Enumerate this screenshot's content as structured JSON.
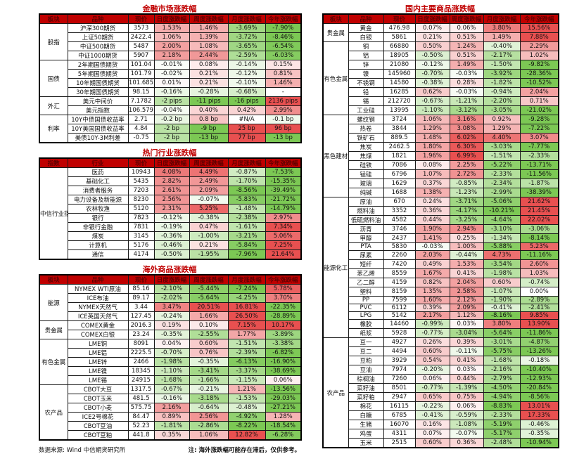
{
  "accent": {
    "title_color": "#c00000",
    "header_bg": "#c00000",
    "header_text": "#5f0000",
    "positive_base": "#e85050",
    "negative_base": "#7cc854"
  },
  "tables": [
    {
      "id": "financial",
      "title": "金融市场涨跌幅",
      "headers": [
        "板块",
        "品种",
        "现价",
        "日度涨跌幅",
        "周度涨跌幅",
        "月度涨跌幅",
        "今年涨跌幅"
      ],
      "groups": [
        {
          "sector": "股指",
          "rows": [
            [
              "沪深300期货",
              "3573",
              "1.53%",
              "1.46%",
              "-3.69%",
              "-7.90%"
            ],
            [
              "上证50期货",
              "2422.4",
              "1.06%",
              "1.39%",
              "-3.72%",
              "-8.46%"
            ],
            [
              "中证500期货",
              "5487",
              "2.00%",
              "1.08%",
              "-3.65%",
              "-6.54%"
            ],
            [
              "中证1000期货",
              "5907",
              "2.18%",
              "2.44%",
              "-2.59%",
              "-6.03%"
            ]
          ]
        },
        {
          "sector": "国债",
          "rows": [
            [
              "2年期国债期货",
              "101.04",
              "-0.01%",
              "0.08%",
              "-0.14%",
              "0.15%"
            ],
            [
              "5年期国债期货",
              "101.79",
              "-0.02%",
              "0.21%",
              "-0.12%",
              "0.81%"
            ],
            [
              "10年期国债期货",
              "101.685",
              "0.01%",
              "0.21%",
              "-0.10%",
              "1.46%"
            ],
            [
              "30年期国债期货",
              "98.15",
              "-0.16%",
              "-0.28%",
              "-0.68%",
              "-"
            ]
          ]
        },
        {
          "sector": "外汇",
          "rows": [
            [
              "美元中间价",
              "7.1782",
              "-2 pips",
              "-11 pips",
              "-16 pips",
              "2136 pips"
            ],
            [
              "美元指数",
              "106.579",
              "-0.04%",
              "0.40%",
              "0.42%",
              "2.99%"
            ]
          ]
        },
        {
          "sector": "利率",
          "rows": [
            [
              "10Y中债国债收益率",
              "2.71",
              "-0.2 bp",
              "0.8 bp",
              "#N/A",
              "-0.1 bp"
            ],
            [
              "10Y美国国债收益率",
              "4.84",
              "-2 bp",
              "-9 bp",
              "25 bp",
              "96 bp"
            ],
            [
              "美债10Y-3M利差",
              "-0.75",
              "-2 bp",
              "-13 bp",
              "77 bp",
              "-13 bp"
            ]
          ]
        }
      ]
    },
    {
      "id": "industry",
      "title": "热门行业涨跌幅",
      "headers": [
        "指数",
        "行业",
        "现价",
        "日度涨跌幅",
        "周度涨跌幅",
        "月度涨跌幅",
        "今年涨跌幅"
      ],
      "groups": [
        {
          "sector": "中信行业指数",
          "rows": [
            [
              "医药",
              "10943",
              "4.08%",
              "4.49%",
              "-0.87%",
              "-7.53%"
            ],
            [
              "基础化工",
              "5435",
              "2.82%",
              "2.49%",
              "-1.70%",
              "-15.35%"
            ],
            [
              "消费者服务",
              "7203",
              "2.61%",
              "2.09%",
              "-8.56%",
              "-39.49%"
            ],
            [
              "电力设备及新能源",
              "8230",
              "2.56%",
              "-0.07%",
              "-5.83%",
              "-21.72%"
            ],
            [
              "农林牧渔",
              "5120",
              "2.31%",
              "5.25%",
              "-1.48%",
              "-14.79%"
            ],
            [
              "银行",
              "7823",
              "-0.12%",
              "-0.38%",
              "-2.38%",
              "2.97%"
            ],
            [
              "非银行金融",
              "7831",
              "-0.19%",
              "0.47%",
              "-1.61%",
              "7.34%"
            ],
            [
              "煤炭",
              "3145",
              "-0.36%",
              "-1.00%",
              "-3.21%",
              "5.06%"
            ],
            [
              "计算机",
              "5176",
              "-0.46%",
              "0.21%",
              "-5.84%",
              "7.25%"
            ],
            [
              "通信",
              "4174",
              "-0.50%",
              "-1.95%",
              "-7.96%",
              "21.64%"
            ]
          ]
        }
      ]
    },
    {
      "id": "overseas",
      "title": "海外商品涨跌幅",
      "headers": [
        "板块",
        "品种",
        "现价",
        "日度涨跌幅",
        "周度涨跌幅",
        "月度涨跌幅",
        "今年涨跌幅"
      ],
      "groups": [
        {
          "sector": "能源",
          "rows": [
            [
              "NYMEX WTI原油",
              "85.16",
              "-2.10%",
              "-5.44%",
              "-7.24%",
              "5.78%"
            ],
            [
              "ICE布油",
              "89.17",
              "-2.02%",
              "-5.64%",
              "-4.25%",
              "3.70%"
            ],
            [
              "NYMEX天然气",
              "3.44",
              "3.47%",
              "20.51%",
              "16.81%",
              "-22.35%"
            ],
            [
              "ICE英国天然气",
              "127.45",
              "-0.24%",
              "1.66%",
              "26.50%",
              "-28.89%"
            ]
          ]
        },
        {
          "sector": "贵金属",
          "rows": [
            [
              "COMEX黄金",
              "2016.3",
              "0.19%",
              "0.10%",
              "7.15%",
              "10.17%"
            ],
            [
              "COMEX白银",
              "23.24",
              "-0.35%",
              "-2.55%",
              "1.77%",
              "-3.89%"
            ]
          ]
        },
        {
          "sector": "有色金属",
          "rows": [
            [
              "LME铜",
              "8091",
              "0.04%",
              "0.60%",
              "-1.51%",
              "-3.38%"
            ],
            [
              "LME铝",
              "2225.5",
              "-0.70%",
              "0.76%",
              "-2.39%",
              "-6.82%"
            ],
            [
              "LME锌",
              "2466",
              "-1.98%",
              "-0.35%",
              "-6.13%",
              "-16.90%"
            ],
            [
              "LME镍",
              "18345",
              "-1.10%",
              "-3.41%",
              "-3.37%",
              "-38.69%"
            ],
            [
              "LME锡",
              "24915",
              "-1.68%",
              "-1.66%",
              "-1.15%",
              "0.06%"
            ]
          ]
        },
        {
          "sector": "农产品",
          "rows": [
            [
              "CBOT大豆",
              "1317.5",
              "-0.67%",
              "-0.21%",
              "1.21%",
              "-13.56%"
            ],
            [
              "CBOT玉米",
              "481.5",
              "-0.16%",
              "-3.18%",
              "-1.53%",
              "-29.03%"
            ],
            [
              "CBOT小麦",
              "575.75",
              "2.16%",
              "-0.64%",
              "-0.48%",
              "-27.21%"
            ],
            [
              "ICE2号棉花",
              "84.47",
              "0.89%",
              "2.56%",
              "-4.92%",
              "1.28%"
            ],
            [
              "CBOT豆油",
              "52.23",
              "-1.81%",
              "-2.86%",
              "-8.22%",
              "-18.54%"
            ],
            [
              "CBOT豆粕",
              "441.8",
              "0.35%",
              "1.06%",
              "12.82%",
              "-6.28%"
            ]
          ]
        }
      ]
    },
    {
      "id": "domestic",
      "title": "国内主要商品涨跌幅",
      "headers": [
        "板块",
        "品种",
        "现价",
        "日度涨跌幅",
        "周度涨跌幅",
        "月度涨跌幅",
        "今年涨跌幅"
      ],
      "groups": [
        {
          "sector": "贵金属",
          "rows": [
            [
              "黄金",
              "476.98",
              "0.07%",
              "0.06%",
              "3.80%",
              "15.56%"
            ],
            [
              "白银",
              "5861",
              "0.21%",
              "0.51%",
              "1.49%",
              "7.88%"
            ]
          ]
        },
        {
          "sector": "有色金属",
          "rows": [
            [
              "铜",
              "66880",
              "0.50%",
              "1.24%",
              "-0.40%",
              "2.29%"
            ],
            [
              "铝",
              "18905",
              "-0.50%",
              "0.51%",
              "-2.17%",
              "1.02%"
            ],
            [
              "锌",
              "21080",
              "-0.12%",
              "1.49%",
              "-1.50%",
              "-9.82%"
            ],
            [
              "镍",
              "145960",
              "-0.70%",
              "-0.03%",
              "-3.92%",
              "-28.36%"
            ],
            [
              "不锈钢",
              "14580",
              "-0.38%",
              "0.28%",
              "-1.82%",
              "-10.52%"
            ],
            [
              "铅",
              "16285",
              "0.62%",
              "-0.03%",
              "-0.94%",
              "2.04%"
            ],
            [
              "锡",
              "212720",
              "-0.67%",
              "-1.21%",
              "-2.20%",
              "0.71%"
            ],
            [
              "工业硅",
              "13995",
              "-1.10%",
              "-3.12%",
              "-3.05%",
              "-21.02%"
            ]
          ]
        },
        {
          "sector": "黑色建材",
          "rows": [
            [
              "螺纹钢",
              "3724",
              "1.06%",
              "3.16%",
              "0.92%",
              "-9.28%"
            ],
            [
              "热卷",
              "3844",
              "1.29%",
              "3.08%",
              "1.29%",
              "-7.22%"
            ],
            [
              "铁矿石",
              "889.5",
              "1.48%",
              "6.02%",
              "4.40%",
              "3.07%"
            ],
            [
              "焦炭",
              "2462.5",
              "1.80%",
              "6.30%",
              "-3.03%",
              "-7.77%"
            ],
            [
              "焦煤",
              "1821",
              "1.96%",
              "6.99%",
              "-1.51%",
              "-2.33%"
            ],
            [
              "硅铁",
              "7086",
              "0.08%",
              "2.25%",
              "-5.22%",
              "-13.71%"
            ],
            [
              "锰硅",
              "6796",
              "1.07%",
              "2.72%",
              "-2.33%",
              "-11.56%"
            ],
            [
              "玻璃",
              "1629",
              "0.37%",
              "-0.85%",
              "-2.34%",
              "-1.87%"
            ],
            [
              "纯碱",
              "1688",
              "1.38%",
              "-1.23%",
              "-2.99%",
              "-38.39%"
            ]
          ]
        },
        {
          "sector": "能源化工",
          "rows": [
            [
              "原油",
              "670",
              "0.24%",
              "-3.71%",
              "-5.06%",
              "21.62%"
            ],
            [
              "燃料油",
              "3352",
              "0.36%",
              "-4.17%",
              "-10.21%",
              "21.45%"
            ],
            [
              "低硫燃料油",
              "4582",
              "0.44%",
              "-3.25%",
              "-4.64%",
              "22.02%"
            ],
            [
              "沥青",
              "3746",
              "1.90%",
              "2.94%",
              "-3.10%",
              "-3.06%"
            ],
            [
              "甲醇",
              "2437",
              "1.41%",
              "0.25%",
              "-1.34%",
              "-8.14%"
            ],
            [
              "PTA",
              "5830",
              "-0.03%",
              "1.00%",
              "-5.88%",
              "5.23%"
            ],
            [
              "尿素",
              "2260",
              "2.03%",
              "-0.44%",
              "4.73%",
              "-11.16%"
            ],
            [
              "短纤",
              "7420",
              "0.49%",
              "1.53%",
              "-3.54%",
              "2.60%"
            ],
            [
              "苯乙烯",
              "8559",
              "1.67%",
              "0.41%",
              "-1.98%",
              "1.03%"
            ],
            [
              "乙二醇",
              "4159",
              "0.82%",
              "2.04%",
              "0.60%",
              "-0.74%"
            ],
            [
              "塑料",
              "8159",
              "1.35%",
              "2.58%",
              "-1.07%",
              "0.00%"
            ],
            [
              "PP",
              "7599",
              "1.60%",
              "2.12%",
              "-1.90%",
              "-2.89%"
            ],
            [
              "PVC",
              "6112",
              "0.39%",
              "2.09%",
              "-0.41%",
              "-2.41%"
            ],
            [
              "LPG",
              "5142",
              "2.17%",
              "1.12%",
              "-8.16%",
              "9.85%"
            ],
            [
              "橡胶",
              "14460",
              "-0.99%",
              "0.03%",
              "3.80%",
              "13.90%"
            ],
            [
              "纸浆",
              "5928",
              "-0.77%",
              "-3.04%",
              "-5.64%",
              "-11.86%"
            ]
          ]
        },
        {
          "sector": "农产品",
          "rows": [
            [
              "豆一",
              "4927",
              "0.26%",
              "0.39%",
              "-3.01%",
              "-4.87%"
            ],
            [
              "豆二",
              "4494",
              "0.60%",
              "-0.11%",
              "-5.75%",
              "-13.26%"
            ],
            [
              "豆粕",
              "3929",
              "0.54%",
              "0.41%",
              "-1.68%",
              "-0.18%"
            ],
            [
              "豆油",
              "7974",
              "-0.20%",
              "0.03%",
              "-2.16%",
              "-10.40%"
            ],
            [
              "棕榈油",
              "7260",
              "0.06%",
              "0.44%",
              "-2.79%",
              "-12.93%"
            ],
            [
              "菜籽油",
              "8501",
              "-0.77%",
              "-1.39%",
              "-4.50%",
              "-20.84%"
            ],
            [
              "菜籽粕",
              "2947",
              "0.65%",
              "0.75%",
              "-4.94%",
              "-8.56%"
            ],
            [
              "棉花",
              "16115",
              "-0.22%",
              "0.06%",
              "-8.83%",
              "13.01%"
            ],
            [
              "白糖",
              "6785",
              "-0.41%",
              "-0.59%",
              "-2.33%",
              "17.33%"
            ],
            [
              "生猪",
              "16070",
              "0.16%",
              "-1.08%",
              "-5.19%",
              "-0.46%"
            ],
            [
              "鸡蛋",
              "4311",
              "0.07%",
              "-0.07%",
              "-5.17%",
              "-0.35%"
            ],
            [
              "玉米",
              "2515",
              "0.60%",
              "0.36%",
              "-2.48%",
              "-10.94%"
            ]
          ]
        }
      ]
    }
  ],
  "footer": {
    "source": "数据来源: Wind 中信期货研究所",
    "note": "注: 海外涨跌幅可能存在滞后，仅供参考。"
  }
}
